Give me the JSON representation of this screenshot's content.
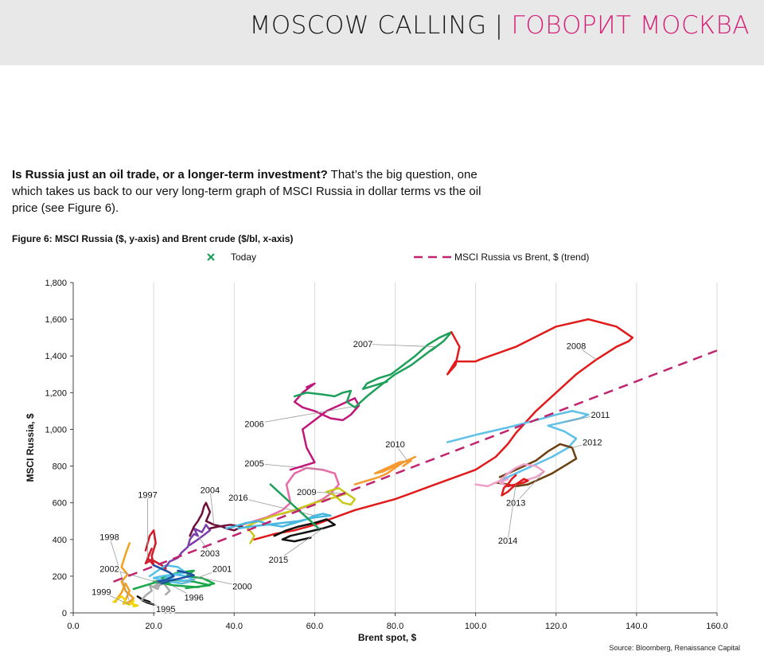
{
  "banner": {
    "en": "MOSCOW CALLING",
    "sep": "|",
    "ru": "ГОВОРИТ МОСКВА"
  },
  "intro": {
    "bold": "Is Russia just an oil trade, or a longer-term investment?",
    "rest": " That’s the big question, one which takes us back to our very long-term graph of MSCI Russia in dollar terms vs the oil price (see Figure 6)."
  },
  "figure_title": "Figure 6: MSCI Russia ($, y-axis) and Brent crude ($/bl, x-axis)",
  "source": "Source: Bloomberg, Renaissance Capital",
  "chart_data": {
    "type": "line",
    "title": "Figure 6: MSCI Russia ($, y-axis) and Brent crude ($/bl, x-axis)",
    "xlabel": "Brent spot, $",
    "ylabel": "MSCI Russia, $",
    "xlim": [
      0,
      160
    ],
    "ylim": [
      0,
      1800
    ],
    "x_ticks": [
      "0.0",
      "20.0",
      "40.0",
      "60.0",
      "80.0",
      "100.0",
      "120.0",
      "140.0",
      "160.0"
    ],
    "y_ticks": [
      "0",
      "200",
      "400",
      "600",
      "800",
      "1,000",
      "1,200",
      "1,400",
      "1,600",
      "1,800"
    ],
    "grid": "vertical",
    "legend": [
      {
        "label": "Today",
        "marker": "x",
        "color": "#1ea05a"
      },
      {
        "label": "MSCI Russia vs Brent, $ (trend)",
        "style": "dashed",
        "color": "#c0246e"
      }
    ],
    "legend_position": "top",
    "trend": {
      "x": [
        10,
        160
      ],
      "y": [
        170,
        1430
      ],
      "color": "#c0246e"
    },
    "series": [
      {
        "name": "1995",
        "color": "#111111",
        "label_at": [
          23,
          22
        ],
        "x": [
          16,
          17,
          19,
          17,
          18.5,
          20,
          19
        ],
        "y": [
          90,
          75,
          60,
          70,
          55,
          45,
          52
        ]
      },
      {
        "name": "1996",
        "color": "#aaaaaa",
        "label_at": [
          30,
          85
        ],
        "x": [
          17,
          18,
          19.5,
          19,
          21,
          22,
          20,
          22.5,
          24,
          23
        ],
        "y": [
          70,
          95,
          120,
          150,
          130,
          180,
          140,
          160,
          120,
          100
        ]
      },
      {
        "name": "1997",
        "color": "#d01c2a",
        "label_at": [
          18.5,
          645
        ],
        "x": [
          18,
          19,
          20,
          20.5,
          19.5,
          20,
          18.5,
          19.5,
          18,
          19.5,
          22,
          23
        ],
        "y": [
          340,
          420,
          450,
          380,
          310,
          260,
          300,
          350,
          270,
          290,
          260,
          240
        ]
      },
      {
        "name": "1998",
        "color": "#f2a020",
        "label_at": [
          9,
          415
        ],
        "x": [
          14,
          13,
          12,
          13.5,
          12,
          13,
          15,
          14,
          12.5,
          13,
          14,
          13,
          12,
          11,
          10.5
        ],
        "y": [
          380,
          320,
          250,
          210,
          170,
          120,
          80,
          60,
          50,
          70,
          120,
          160,
          110,
          80,
          60
        ]
      },
      {
        "name": "1999",
        "color": "#f2d400",
        "label_at": [
          7,
          115
        ],
        "x": [
          10,
          11,
          12,
          13,
          12.5,
          14,
          15,
          14.5,
          16,
          15
        ],
        "y": [
          60,
          75,
          90,
          70,
          55,
          45,
          65,
          50,
          40,
          35
        ]
      },
      {
        "name": "2000",
        "color": "#1aa84a",
        "label_at": [
          42,
          145
        ],
        "x": [
          15,
          18,
          21,
          24,
          22,
          26,
          30,
          28,
          32,
          35,
          31,
          25,
          20,
          24,
          30,
          34,
          28
        ],
        "y": [
          130,
          150,
          170,
          160,
          190,
          220,
          230,
          200,
          190,
          160,
          140,
          150,
          170,
          180,
          170,
          150,
          135
        ]
      },
      {
        "name": "2001",
        "color": "#55c0e8",
        "label_at": [
          37,
          240
        ],
        "x": [
          19,
          21,
          23,
          26,
          28,
          25,
          23,
          26,
          29,
          27,
          24,
          22,
          20,
          22,
          25,
          28,
          30,
          27
        ],
        "y": [
          200,
          230,
          260,
          250,
          220,
          210,
          190,
          180,
          170,
          160,
          170,
          180,
          190,
          200,
          210,
          200,
          180,
          175
        ]
      },
      {
        "name": "2002",
        "color": "#1f4fa0",
        "label_at": [
          9,
          240
        ],
        "x": [
          20,
          22,
          24,
          25,
          23,
          21,
          22,
          24,
          27,
          30,
          28,
          26
        ],
        "y": [
          260,
          240,
          220,
          200,
          180,
          170,
          160,
          175,
          190,
          205,
          220,
          230
        ]
      },
      {
        "name": "2003",
        "color": "#7a3fa8",
        "label_at": [
          34,
          325
        ],
        "x": [
          23,
          24,
          26,
          27,
          28.5,
          29,
          30,
          31,
          30,
          32,
          33,
          34,
          31,
          29
        ],
        "y": [
          250,
          280,
          300,
          330,
          360,
          400,
          430,
          420,
          460,
          440,
          480,
          450,
          400,
          370
        ]
      },
      {
        "name": "2004",
        "color": "#6e0f3a",
        "label_at": [
          34,
          670
        ],
        "x": [
          29,
          30,
          31,
          32,
          32.5,
          33,
          34,
          33,
          35,
          37,
          38,
          40,
          42,
          39,
          36,
          34
        ],
        "y": [
          420,
          470,
          500,
          540,
          580,
          600,
          550,
          500,
          480,
          470,
          460,
          450,
          470,
          480,
          470,
          460
        ]
      },
      {
        "name": "2005",
        "color": "#e86aa8",
        "label_at": [
          45,
          815
        ],
        "x": [
          42,
          45,
          48,
          50,
          52,
          54,
          53,
          55,
          58,
          62,
          65,
          66,
          64,
          62,
          60,
          58,
          55,
          52
        ],
        "y": [
          480,
          500,
          520,
          540,
          560,
          600,
          700,
          760,
          790,
          780,
          760,
          700,
          650,
          620,
          600,
          580,
          560,
          540
        ]
      },
      {
        "name": "2006",
        "color": "#c0187a",
        "label_at": [
          45,
          1030
        ],
        "x": [
          54,
          57,
          60,
          58,
          57,
          60,
          63,
          66,
          68,
          70,
          71,
          69,
          67,
          64,
          60,
          57,
          55,
          57,
          60,
          58
        ],
        "y": [
          780,
          800,
          820,
          900,
          1000,
          1050,
          1100,
          1130,
          1150,
          1170,
          1130,
          1080,
          1050,
          1060,
          1100,
          1120,
          1150,
          1200,
          1250,
          1230
        ]
      },
      {
        "name": "2007",
        "color": "#1ea05a",
        "label_at": [
          72,
          1465
        ],
        "x": [
          55,
          58,
          62,
          65,
          67,
          69,
          68,
          70,
          73,
          77,
          80,
          84,
          87,
          90,
          89,
          92,
          94,
          91,
          88,
          85,
          82,
          79,
          76,
          73,
          72,
          75,
          78
        ],
        "y": [
          1180,
          1200,
          1190,
          1180,
          1200,
          1210,
          1150,
          1120,
          1180,
          1250,
          1300,
          1350,
          1400,
          1450,
          1430,
          1480,
          1530,
          1500,
          1460,
          1400,
          1350,
          1300,
          1280,
          1250,
          1220,
          1240,
          1260
        ]
      },
      {
        "name": "2008",
        "color": "#e11b1b",
        "label_at": [
          125,
          1455
        ],
        "x": [
          45,
          50,
          55,
          60,
          65,
          70,
          80,
          90,
          100,
          105,
          108,
          110,
          115,
          120,
          125,
          130,
          135,
          138,
          139,
          135,
          128,
          120,
          110,
          101,
          100,
          95,
          93,
          95,
          96,
          94
        ],
        "y": [
          400,
          430,
          450,
          480,
          520,
          560,
          620,
          700,
          780,
          850,
          920,
          980,
          1100,
          1200,
          1300,
          1380,
          1450,
          1480,
          1500,
          1560,
          1600,
          1560,
          1450,
          1380,
          1370,
          1370,
          1300,
          1350,
          1450,
          1530
        ]
      },
      {
        "name": "2009",
        "color": "#c8c81a",
        "label_at": [
          58,
          660
        ],
        "x": [
          44,
          45,
          43,
          46,
          50,
          55,
          60,
          65,
          68,
          70,
          69,
          67,
          65,
          63,
          66,
          68,
          70
        ],
        "y": [
          380,
          420,
          470,
          500,
          530,
          560,
          600,
          630,
          650,
          620,
          590,
          600,
          640,
          660,
          680,
          650,
          620
        ]
      },
      {
        "name": "2010",
        "color": "#f59a30",
        "label_at": [
          80,
          920
        ],
        "x": [
          70,
          73,
          76,
          78,
          80,
          82,
          85,
          83,
          80,
          77,
          75,
          78,
          81,
          84,
          82
        ],
        "y": [
          700,
          720,
          740,
          760,
          790,
          820,
          850,
          830,
          800,
          770,
          760,
          790,
          820,
          830,
          800
        ]
      },
      {
        "name": "2011",
        "color": "#5fc0e8",
        "label_at": [
          131,
          1080
        ],
        "x": [
          93,
          100,
          108,
          115,
          120,
          124,
          126,
          128,
          126,
          122,
          118,
          122,
          125,
          123,
          119,
          114,
          110,
          106
        ],
        "y": [
          930,
          970,
          1010,
          1050,
          1080,
          1100,
          1090,
          1080,
          1060,
          1040,
          1020,
          990,
          950,
          900,
          850,
          800,
          760,
          720
        ]
      },
      {
        "name": "2012",
        "color": "#6b3f10",
        "label_at": [
          129,
          930
        ],
        "x": [
          105,
          108,
          110,
          113,
          116,
          119,
          122,
          125,
          124,
          121,
          118,
          115,
          112,
          110,
          108,
          106
        ],
        "y": [
          710,
          700,
          690,
          700,
          730,
          760,
          800,
          840,
          900,
          920,
          880,
          830,
          800,
          780,
          760,
          740
        ]
      },
      {
        "name": "2013",
        "color": "#f0a0c8",
        "label_at": [
          110,
          600
        ],
        "x": [
          100,
          103,
          106,
          108,
          110,
          112,
          115,
          117,
          115,
          112,
          110,
          108,
          106,
          108
        ],
        "y": [
          700,
          690,
          720,
          760,
          790,
          810,
          800,
          770,
          740,
          720,
          700,
          690,
          710,
          730
        ]
      },
      {
        "name": "2014",
        "color": "#e01a1a",
        "label_at": [
          108,
          395
        ],
        "x": [
          110,
          109,
          108,
          107,
          106.5,
          108,
          110,
          112,
          113,
          112,
          110,
          108
        ],
        "y": [
          750,
          730,
          700,
          680,
          640,
          660,
          700,
          730,
          720,
          710,
          700,
          690
        ]
      },
      {
        "name": "2015",
        "color": "#111111",
        "label_at": [
          51,
          290
        ],
        "x": [
          50,
          53,
          56,
          60,
          63,
          65,
          62,
          58,
          54,
          52,
          55,
          59
        ],
        "y": [
          420,
          450,
          470,
          490,
          510,
          480,
          460,
          440,
          420,
          400,
          390,
          410
        ]
      },
      {
        "name": "2016",
        "color": "#48b8e0",
        "label_at": [
          41,
          630
        ],
        "x": [
          38,
          40,
          43,
          46,
          49,
          52,
          55,
          58,
          60,
          62,
          64,
          60,
          56,
          52,
          48,
          44,
          41
        ],
        "y": [
          460,
          470,
          490,
          500,
          480,
          470,
          490,
          510,
          530,
          540,
          530,
          520,
          500,
          490,
          480,
          470,
          460
        ]
      },
      {
        "name": "",
        "color": "#1ea05a",
        "x": [
          49,
          52,
          55,
          58,
          61
        ],
        "y": [
          700,
          640,
          580,
          520,
          460
        ]
      }
    ]
  }
}
